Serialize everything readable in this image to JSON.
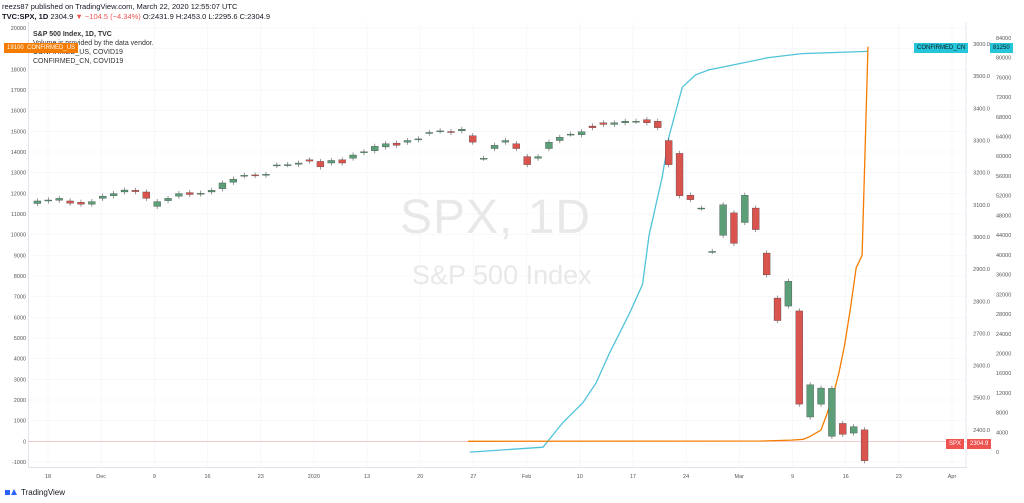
{
  "header": {
    "line1": "reezs87 published on TradingView.com, March 22, 2020 12:55:07 UTC",
    "symbol": "TVC:SPX, 1D",
    "price": "2304.9",
    "change": "−104.5 (−4.34%)",
    "ohlc": "O:2431.9 H:2453.0 L:2295.6 C:2304.9"
  },
  "legend": {
    "title": "S&P 500 Index, 1D, TVC",
    "note": "Volume is provided by the data vendor.",
    "series1": "CONFIRMED_US, COVID19",
    "series2": "CONFIRMED_CN, COVID19"
  },
  "watermark": {
    "big": "SPX, 1D",
    "small": "S&P 500 Index"
  },
  "tags": {
    "left": "19100",
    "left_label": "CONFIRMED_US",
    "cn_label": "CONFIRMED_CN",
    "cn_value": "81250",
    "spx_label": "SPX",
    "spx_value": "2304.9"
  },
  "footer": {
    "brand": "TradingView"
  },
  "chart_data": {
    "type": "line",
    "title": "S&P 500 Index, 1D, TVC",
    "x_tick_labels": [
      "18",
      "Dec",
      "9",
      "16",
      "23",
      "2020",
      "13",
      "20",
      "27",
      "Feb",
      "10",
      "17",
      "24",
      "Mar",
      "9",
      "16",
      "23",
      "Apr"
    ],
    "left_axis": {
      "ticks": [
        20000,
        19000,
        18000,
        17000,
        16000,
        15000,
        14000,
        13000,
        12000,
        11000,
        10000,
        9000,
        8000,
        7000,
        6000,
        5000,
        4000,
        3000,
        2000,
        1000,
        0,
        -1000
      ],
      "range": [
        -1000,
        20000
      ]
    },
    "mid_axis": {
      "ticks": [
        3600,
        3500,
        3400,
        3300,
        3200,
        3100,
        3000,
        2900,
        2800,
        2700,
        2600,
        2500,
        2400
      ],
      "range": [
        2300,
        3650
      ]
    },
    "right_axis": {
      "ticks": [
        84000,
        80000,
        76000,
        72000,
        68000,
        64000,
        60000,
        56000,
        52000,
        48000,
        44000,
        40000,
        36000,
        32000,
        28000,
        24000,
        20000,
        16000,
        12000,
        8000,
        4000,
        0
      ],
      "range": [
        -2000,
        86000
      ]
    },
    "spx_candles": [
      [
        3104,
        3112
      ],
      [
        3112,
        3115
      ],
      [
        3114,
        3120
      ],
      [
        3112,
        3105
      ],
      [
        3108,
        3102
      ],
      [
        3102,
        3110
      ],
      [
        3120,
        3127
      ],
      [
        3128,
        3135
      ],
      [
        3140,
        3146
      ],
      [
        3145,
        3141
      ],
      [
        3140,
        3120
      ],
      [
        3095,
        3110
      ],
      [
        3113,
        3120
      ],
      [
        3127,
        3135
      ],
      [
        3138,
        3132
      ],
      [
        3134,
        3136
      ],
      [
        3140,
        3145
      ],
      [
        3150,
        3168
      ],
      [
        3170,
        3180
      ],
      [
        3190,
        3192
      ],
      [
        3193,
        3191
      ],
      [
        3192,
        3195
      ],
      [
        3222,
        3224
      ],
      [
        3225,
        3225
      ],
      [
        3226,
        3230
      ],
      [
        3240,
        3236
      ],
      [
        3235,
        3218
      ],
      [
        3230,
        3238
      ],
      [
        3240,
        3230
      ],
      [
        3245,
        3255
      ],
      [
        3262,
        3265
      ],
      [
        3268,
        3282
      ],
      [
        3280,
        3290
      ],
      [
        3292,
        3285
      ],
      [
        3295,
        3300
      ],
      [
        3302,
        3305
      ],
      [
        3323,
        3325
      ],
      [
        3330,
        3330
      ],
      [
        3328,
        3325
      ],
      [
        3330,
        3335
      ],
      [
        3315,
        3295
      ],
      [
        3245,
        3245
      ],
      [
        3275,
        3285
      ],
      [
        3295,
        3300
      ],
      [
        3290,
        3275
      ],
      [
        3250,
        3225
      ],
      [
        3245,
        3250
      ],
      [
        3275,
        3295
      ],
      [
        3300,
        3310
      ],
      [
        3320,
        3320
      ],
      [
        3318,
        3327
      ],
      [
        3345,
        3340
      ],
      [
        3355,
        3350
      ],
      [
        3350,
        3355
      ],
      [
        3355,
        3360
      ],
      [
        3360,
        3360
      ],
      [
        3365,
        3355
      ],
      [
        3360,
        3340
      ],
      [
        3300,
        3225
      ],
      [
        3260,
        3128
      ],
      [
        3130,
        3116
      ],
      [
        3090,
        3090
      ],
      [
        2955,
        2955
      ],
      [
        3005,
        3100
      ],
      [
        3075,
        2980
      ],
      [
        3045,
        3130
      ],
      [
        3090,
        3023
      ],
      [
        2950,
        2882
      ],
      [
        2810,
        2740
      ],
      [
        2785,
        2862
      ],
      [
        2770,
        2480
      ],
      [
        2440,
        2540
      ],
      [
        2480,
        2530
      ],
      [
        2380,
        2529
      ],
      [
        2420,
        2386
      ],
      [
        2390,
        2410
      ],
      [
        2400,
        2304
      ]
    ],
    "series": [
      {
        "name": "CONFIRMED_CN, COVID19",
        "points": [
          [
            0,
            0
          ],
          [
            11,
            1000
          ],
          [
            14,
            6000
          ],
          [
            17,
            10000
          ],
          [
            19,
            14000
          ],
          [
            21,
            20000
          ],
          [
            24,
            28000
          ],
          [
            26,
            34000
          ],
          [
            27,
            44000
          ],
          [
            29,
            56000
          ],
          [
            30,
            64000
          ],
          [
            32,
            74000
          ],
          [
            34,
            76500
          ],
          [
            36,
            77500
          ],
          [
            40,
            78600
          ],
          [
            45,
            80000
          ],
          [
            50,
            80800
          ],
          [
            60,
            81250
          ]
        ]
      },
      {
        "name": "CONFIRMED_US, COVID19",
        "points": [
          [
            0,
            0
          ],
          [
            50,
            15
          ],
          [
            55,
            60
          ],
          [
            57,
            100
          ],
          [
            58,
            214
          ],
          [
            60,
            541
          ],
          [
            61,
            1301
          ],
          [
            62,
            2179
          ],
          [
            63,
            3244
          ],
          [
            64,
            4632
          ],
          [
            65,
            6421
          ],
          [
            66,
            8402
          ],
          [
            67,
            9000
          ],
          [
            68,
            19100
          ]
        ]
      }
    ]
  }
}
